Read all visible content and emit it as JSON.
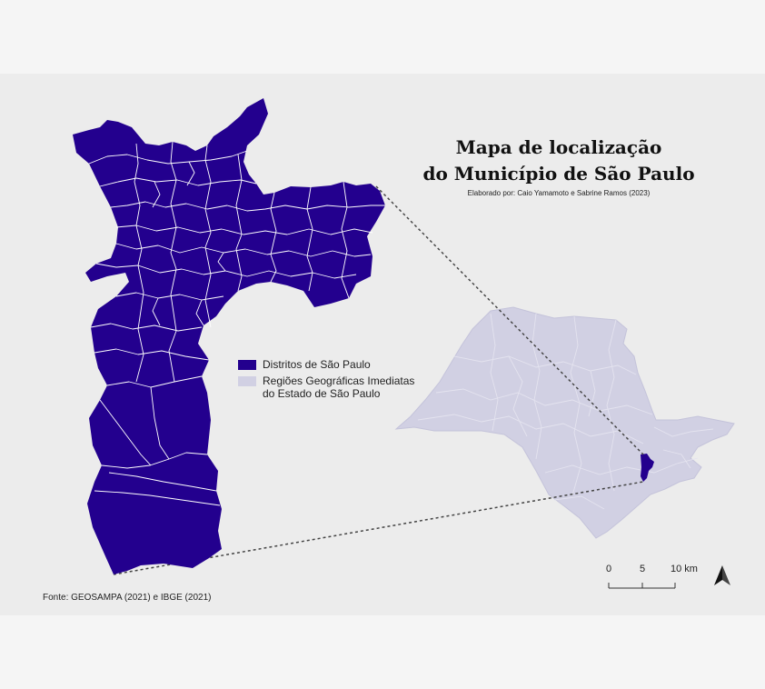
{
  "map": {
    "title_line1": "Mapa de localização",
    "title_line2": "do Município de São Paulo",
    "credit": "Elaborado por: Caio Yamamoto e Sabrine Ramos (2023)",
    "source": "Fonte: GEOSAMPA (2021) e IBGE (2021)",
    "colors": {
      "districts": "#23008e",
      "state_regions": "#d1d0e3",
      "background": "#ececec"
    },
    "legend": [
      {
        "label": "Distritos de São Paulo",
        "color": "#23008e"
      },
      {
        "label": "Regiões Geográficas Imediatas do Estado de São Paulo",
        "color": "#d1d0e3"
      }
    ],
    "scale_bar": {
      "ticks": [
        "0",
        "5",
        "10 km"
      ]
    },
    "north_arrow": "north-arrow-icon"
  }
}
